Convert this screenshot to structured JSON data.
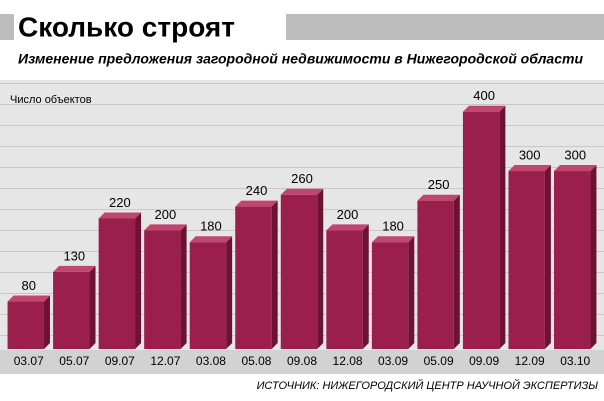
{
  "chart_data": {
    "type": "bar",
    "title": "Сколько строят",
    "subtitle": "Изменение предложения загородной недвижимости в Нижегородской области",
    "y_label": "Число объектов",
    "source": "ИСТОЧНИК: НИЖЕГОРОДСКИЙ ЦЕНТР НАУЧНОЙ ЭКСПЕРТИЗЫ",
    "categories": [
      "03.07",
      "05.07",
      "09.07",
      "12.07",
      "03.08",
      "05.08",
      "09.08",
      "12.08",
      "03.09",
      "05.09",
      "09.09",
      "12.09",
      "03.10"
    ],
    "values": [
      80,
      130,
      220,
      200,
      180,
      240,
      260,
      200,
      180,
      250,
      400,
      300,
      300
    ],
    "color": "#9b1f4c",
    "ylim": [
      0,
      440
    ]
  }
}
